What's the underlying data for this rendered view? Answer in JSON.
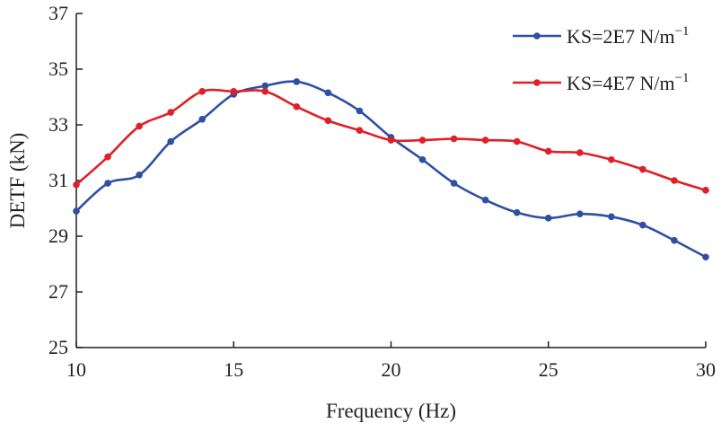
{
  "chart_data": {
    "type": "line",
    "title": "",
    "xlabel": "Frequency (Hz)",
    "ylabel": "DETF (kN)",
    "xlim": [
      10,
      30
    ],
    "ylim": [
      25,
      37
    ],
    "xticks": [
      10,
      15,
      20,
      25,
      30
    ],
    "yticks": [
      25,
      27,
      29,
      31,
      33,
      35,
      37
    ],
    "x": [
      10,
      11,
      12,
      13,
      14,
      15,
      16,
      17,
      18,
      19,
      20,
      21,
      22,
      23,
      24,
      25,
      26,
      27,
      28,
      29,
      30
    ],
    "legend_position": "top-right",
    "series": [
      {
        "name": "KS=2E7 N/m",
        "name_sup": "−1",
        "color": "#2e4fa3",
        "values": [
          29.9,
          30.9,
          31.2,
          32.4,
          33.2,
          34.1,
          34.4,
          34.55,
          34.15,
          33.5,
          32.55,
          31.75,
          30.9,
          30.3,
          29.85,
          29.65,
          29.8,
          29.7,
          29.4,
          28.85,
          28.25
        ]
      },
      {
        "name": "KS=4E7 N/m",
        "name_sup": "−1",
        "color": "#e01f26",
        "values": [
          30.85,
          31.85,
          32.95,
          33.45,
          34.2,
          34.2,
          34.2,
          33.65,
          33.15,
          32.8,
          32.45,
          32.45,
          32.5,
          32.45,
          32.4,
          32.05,
          32.0,
          31.75,
          31.4,
          31.0,
          30.65
        ]
      }
    ]
  }
}
